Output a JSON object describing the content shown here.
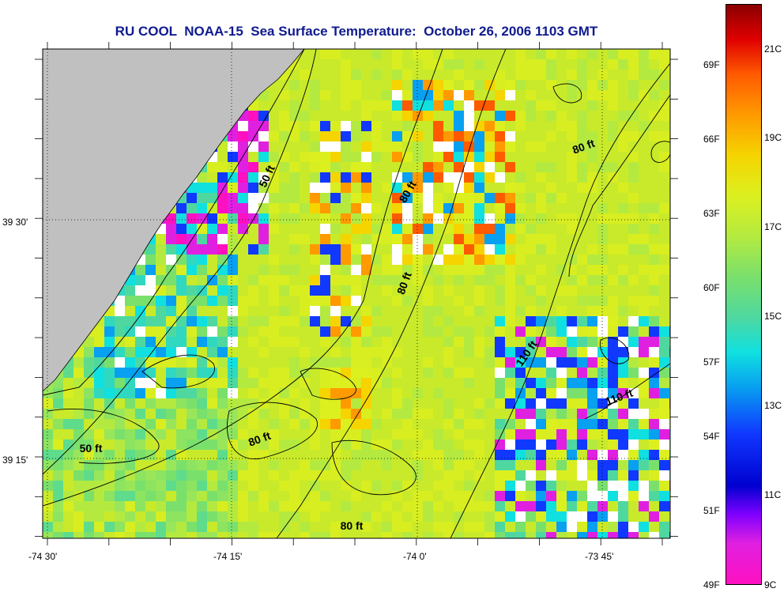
{
  "title": "RU COOL  NOAA-15  Sea Surface Temperature:  October 26, 2006 1103 GMT",
  "map": {
    "x_tick_labels": [
      "-74 30'",
      "-74 15'",
      "-74 0'",
      "-73 45'"
    ],
    "y_tick_labels": [
      "39 30'",
      "39 15'"
    ],
    "contour_labels": [
      {
        "text": "50 ft",
        "rot": -65
      },
      {
        "text": "80 ft",
        "rot": -60
      },
      {
        "text": "80 ft",
        "rot": -70
      },
      {
        "text": "80 ft",
        "rot": -20
      },
      {
        "text": "110 ft",
        "rot": -55
      },
      {
        "text": "110 ft",
        "rot": -20
      },
      {
        "text": "50 ft",
        "rot": 0
      },
      {
        "text": "80 ft",
        "rot": -20
      },
      {
        "text": "80 ft",
        "rot": 0
      }
    ],
    "colors": {
      "land": "#c0c0c0",
      "background_water": "#c8ea2a",
      "frame": "#000000"
    }
  },
  "colorbar": {
    "fahrenheit_labels": [
      "69F",
      "66F",
      "63F",
      "60F",
      "57F",
      "54F",
      "51F",
      "49F"
    ],
    "celsius_labels": [
      "21C",
      "19C",
      "17C",
      "15C",
      "13C",
      "11C",
      "9C"
    ],
    "stops": [
      "#8a0000",
      "#e00000",
      "#ff5a00",
      "#ff9a00",
      "#f5d400",
      "#dcf020",
      "#b4ea40",
      "#7ae06c",
      "#4ed8a0",
      "#10e0e0",
      "#08a0f0",
      "#1038ff",
      "#0000d0",
      "#8000ff",
      "#e020e0",
      "#ff10c0"
    ]
  }
}
